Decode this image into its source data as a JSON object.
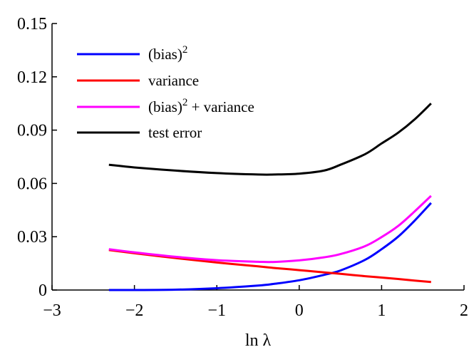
{
  "chart_data": {
    "type": "line",
    "title": "",
    "xlabel": "ln λ",
    "ylabel": "",
    "xlim": [
      -3,
      2
    ],
    "ylim": [
      0,
      0.15
    ],
    "xticks": [
      -3,
      -2,
      -1,
      0,
      1,
      2
    ],
    "xtick_labels": [
      "−3",
      "−2",
      "−1",
      "0",
      "1",
      "2"
    ],
    "yticks": [
      0,
      0.03,
      0.06,
      0.09,
      0.12,
      0.15
    ],
    "ytick_labels": [
      "0",
      "0.03",
      "0.06",
      "0.09",
      "0.12",
      "0.15"
    ],
    "grid": false,
    "legend_position": "top-left",
    "x": [
      -2.31,
      -2.0,
      -1.5,
      -1.0,
      -0.5,
      -0.3,
      0.0,
      0.3,
      0.5,
      0.8,
      1.0,
      1.2,
      1.4,
      1.6
    ],
    "series": [
      {
        "name": "(bias)²",
        "label_main": "(bias)",
        "label_sup": "2",
        "label_rest": "",
        "color": "#0000ff",
        "values": [
          0.0,
          0.0,
          0.0002,
          0.001,
          0.0025,
          0.0035,
          0.0055,
          0.0085,
          0.011,
          0.017,
          0.023,
          0.03,
          0.039,
          0.049
        ]
      },
      {
        "name": "variance",
        "label_main": "variance",
        "label_sup": "",
        "label_rest": "",
        "color": "#ff0000",
        "values": [
          0.0225,
          0.0207,
          0.018,
          0.0155,
          0.0133,
          0.0124,
          0.0112,
          0.0099,
          0.0091,
          0.0078,
          0.007,
          0.0062,
          0.0053,
          0.0045
        ]
      },
      {
        "name": "(bias)² + variance",
        "label_main": "(bias)",
        "label_sup": "2",
        "label_rest": " + variance",
        "color": "#ff00ff",
        "values": [
          0.023,
          0.0212,
          0.0187,
          0.0168,
          0.0159,
          0.0158,
          0.0167,
          0.0184,
          0.0202,
          0.0247,
          0.0298,
          0.036,
          0.0442,
          0.053
        ]
      },
      {
        "name": "test error",
        "label_main": "test error",
        "label_sup": "",
        "label_rest": "",
        "color": "#000000",
        "values": [
          0.0705,
          0.069,
          0.0672,
          0.0658,
          0.065,
          0.065,
          0.0655,
          0.0672,
          0.0705,
          0.0765,
          0.0825,
          0.0885,
          0.096,
          0.105
        ]
      }
    ]
  }
}
